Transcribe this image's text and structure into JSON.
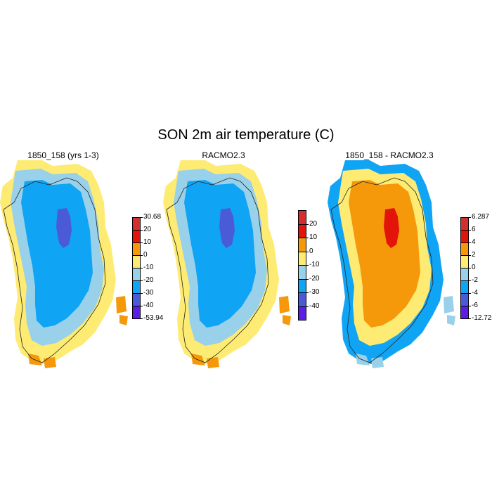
{
  "title": "SON 2m air temperature (C)",
  "panels": [
    {
      "id": "p1",
      "title": "1850_158 (yrs 1-3)",
      "colors": [
        "#5a1ee6",
        "#4b5ad6",
        "#10a4f4",
        "#99d0ea",
        "#fdeb73",
        "#f5990a",
        "#e3150a",
        "#d42f2f"
      ],
      "labels": [
        "-53.94",
        "-40",
        "-30",
        "-20",
        "-10",
        "0",
        "10",
        "20",
        "30.68"
      ],
      "end_labels": true,
      "bands": [
        "#fdeb73",
        "#99d0ea",
        "#10a4f4",
        "#4b5ad6"
      ]
    },
    {
      "id": "p2",
      "title": "RACMO2.3",
      "colors": [
        "#5a1ee6",
        "#4b5ad6",
        "#10a4f4",
        "#99d0ea",
        "#fdeb73",
        "#f5990a",
        "#e3150a",
        "#d42f2f"
      ],
      "labels": [
        "-40",
        "-30",
        "-20",
        "-10",
        "0",
        "10",
        "20"
      ],
      "end_labels": false,
      "bands": [
        "#fdeb73",
        "#99d0ea",
        "#10a4f4",
        "#4b5ad6"
      ]
    },
    {
      "id": "p3",
      "title": "1850_158 - RACMO2.3",
      "colors": [
        "#5a1ee6",
        "#4b5ad6",
        "#10a4f4",
        "#99d0ea",
        "#fdeb73",
        "#f5990a",
        "#e3150a",
        "#d42f2f"
      ],
      "labels": [
        "-12.722",
        "-6",
        "-4",
        "-2",
        "0",
        "2",
        "4",
        "6",
        "6.287"
      ],
      "end_labels": true,
      "bands": [
        "#10a4f4",
        "#fdeb73",
        "#f5990a",
        "#e3150a"
      ]
    }
  ]
}
